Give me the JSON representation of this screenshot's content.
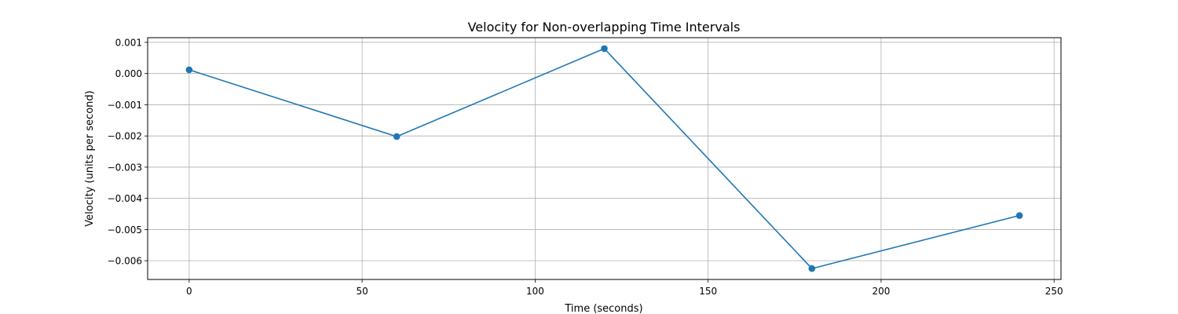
{
  "chart_data": {
    "type": "line",
    "title": "Velocity for Non-overlapping Time Intervals",
    "xlabel": "Time (seconds)",
    "ylabel": "Velocity (units per second)",
    "xlim": [
      -12,
      252
    ],
    "ylim": [
      -0.0066,
      0.00115
    ],
    "xticks": [
      0,
      50,
      100,
      150,
      200,
      250
    ],
    "xtick_labels": [
      "0",
      "50",
      "100",
      "150",
      "200",
      "250"
    ],
    "yticks": [
      0.001,
      0.0,
      -0.001,
      -0.002,
      -0.003,
      -0.004,
      -0.005,
      -0.006
    ],
    "ytick_labels": [
      "0.001",
      "0.000",
      "−0.001",
      "−0.002",
      "−0.003",
      "−0.004",
      "−0.005",
      "−0.006"
    ],
    "grid": true,
    "marker": "circle",
    "line_color": "#1f77b4",
    "series": [
      {
        "x": [
          0,
          60,
          120,
          180,
          240
        ],
        "values": [
          0.00012,
          -0.00202,
          0.0008,
          -0.00625,
          -0.00455
        ]
      }
    ]
  }
}
